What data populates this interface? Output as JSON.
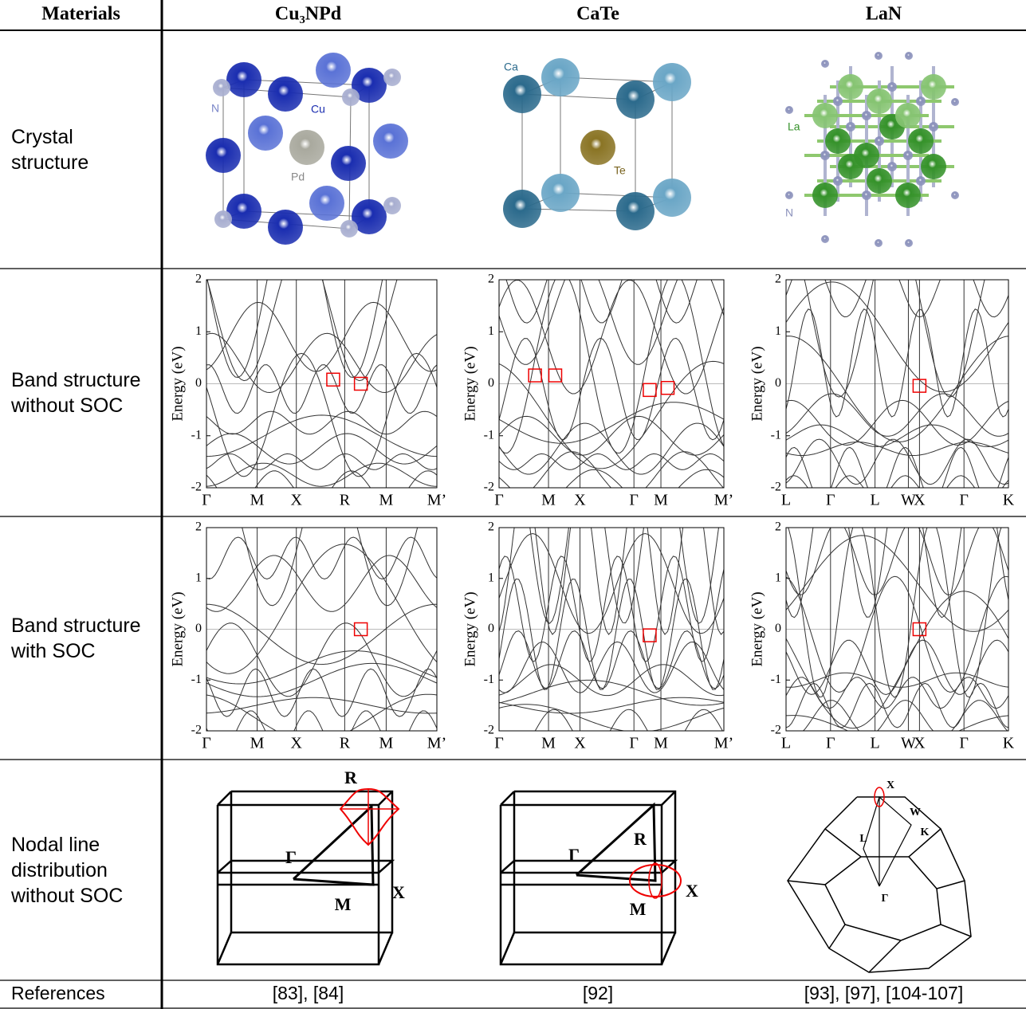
{
  "header": {
    "row_label": "Materials",
    "materials": [
      "Cu₃NPd",
      "CaTe",
      "LaN"
    ]
  },
  "crystal_row": {
    "label": "Crystal structure",
    "atom_labels": [
      [
        "N",
        "Cu",
        "Pd"
      ],
      [
        "Ca",
        "Te"
      ],
      [
        "La",
        "N"
      ]
    ]
  },
  "band_rows": [
    {
      "label": "Band structure without SOC",
      "panels": [
        {
          "ylabel": "Energy (eV)",
          "yticks": [
            2,
            1,
            0,
            -1,
            -2
          ],
          "kpoints": [
            "Γ",
            "M",
            "X",
            "R",
            "M",
            "M’"
          ]
        },
        {
          "ylabel": "Energy (eV)",
          "yticks": [
            2,
            1,
            0,
            -1,
            -2
          ],
          "kpoints": [
            "Γ",
            "M",
            "X",
            "Γ",
            "M",
            "M’"
          ]
        },
        {
          "ylabel": "Energy (eV)",
          "yticks": [
            2,
            1,
            0,
            -1,
            -2
          ],
          "kpoints": [
            "L",
            "Γ",
            "L",
            "W",
            "X",
            "Γ",
            "K"
          ]
        }
      ]
    },
    {
      "label": "Band structure with SOC",
      "panels": [
        {
          "ylabel": "Energy (eV)",
          "yticks": [
            2,
            1,
            0,
            -1,
            -2
          ],
          "kpoints": [
            "Γ",
            "M",
            "X",
            "R",
            "M",
            "M’"
          ]
        },
        {
          "ylabel": "Energy (eV)",
          "yticks": [
            2,
            1,
            0,
            -1,
            -2
          ],
          "kpoints": [
            "Γ",
            "M",
            "X",
            "Γ",
            "M",
            "M’"
          ]
        },
        {
          "ylabel": "Energy (eV)",
          "yticks": [
            2,
            1,
            0,
            -1,
            -2
          ],
          "kpoints": [
            "L",
            "Γ",
            "L",
            "W",
            "X",
            "Γ",
            "K"
          ]
        }
      ]
    }
  ],
  "nodal_row": {
    "label": "Nodal line distribution without SOC",
    "points": [
      [
        "R",
        "Γ",
        "M",
        "X"
      ],
      [
        "R",
        "Γ",
        "M",
        "X"
      ],
      [
        "X",
        "W",
        "K",
        "L",
        "Γ"
      ]
    ]
  },
  "references": {
    "label": "References",
    "values": [
      "[83], [84]",
      "[92]",
      "[93], [97], [104-107]"
    ]
  }
}
